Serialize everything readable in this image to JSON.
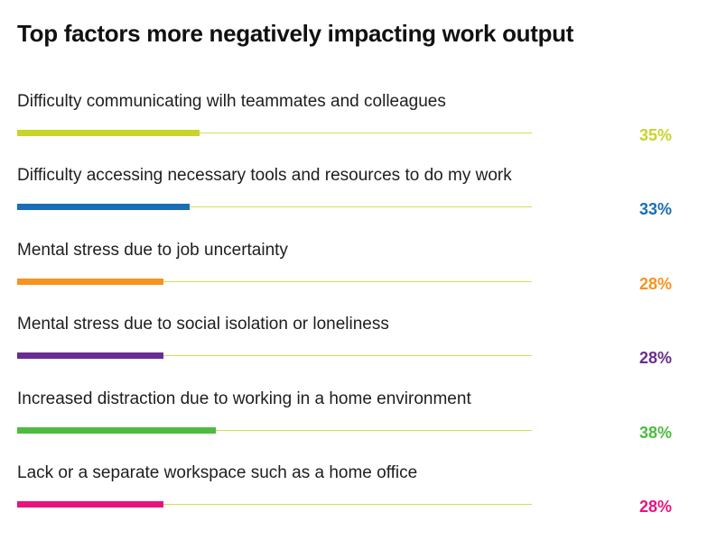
{
  "chart_data": {
    "type": "bar",
    "orientation": "horizontal",
    "title": "Top factors more negatively impacting work output",
    "categories": [
      "Difficulty communicating wilh teammates and colleagues",
      "Difficulty accessing necessary tools and resources to do my work",
      "Mental stress due to job uncertainty",
      "Mental stress due to social isolation or loneliness",
      "Increased distraction due to working in a home environment",
      "Lack or a separate workspace such as a home office"
    ],
    "values": [
      35,
      33,
      28,
      28,
      38,
      28
    ],
    "value_labels": [
      "35%",
      "33%",
      "28%",
      "28%",
      "38%",
      "28%"
    ],
    "colors": [
      "#c8d42a",
      "#1b6eb5",
      "#f7931e",
      "#6a2c91",
      "#4cbc3f",
      "#e6147d"
    ],
    "track_color": "#d3df52",
    "xlim": [
      0,
      100
    ],
    "grid": false,
    "legend": "none"
  }
}
